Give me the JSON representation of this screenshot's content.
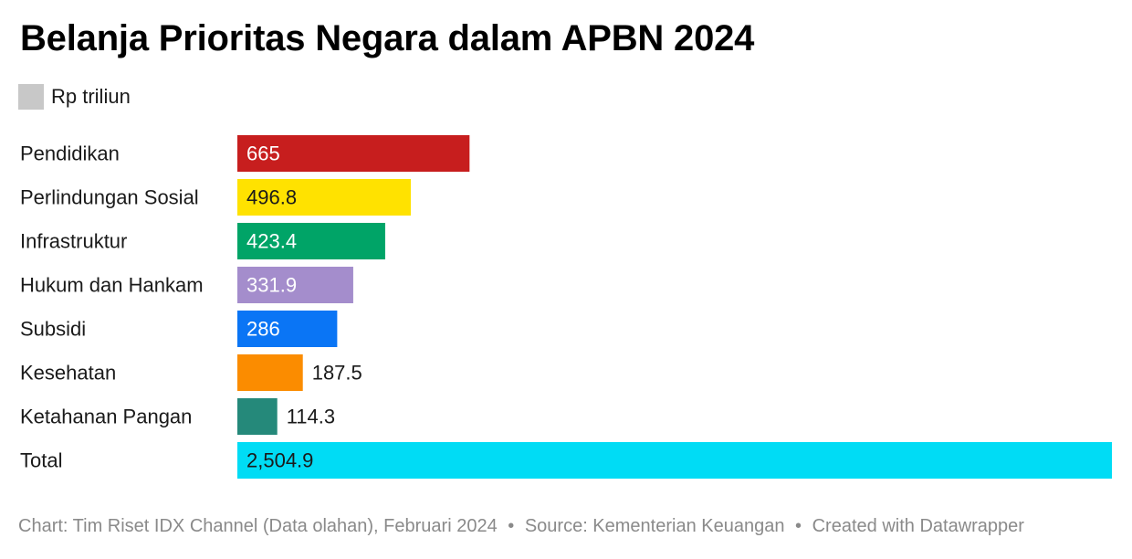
{
  "title": "Belanja Prioritas Negara dalam APBN 2024",
  "legend": {
    "label": "Rp triliun",
    "swatch_color": "#c8c8c8"
  },
  "footer": {
    "chart_credit": "Chart: Tim Riset IDX Channel (Data olahan), Februari 2024",
    "source": "Source: Kementerian Keuangan",
    "created_with": "Created with Datawrapper",
    "separator": "•"
  },
  "chart_data": {
    "type": "bar",
    "orientation": "horizontal",
    "title": "Belanja Prioritas Negara dalam APBN 2024",
    "unit": "Rp triliun",
    "xlim": [
      0,
      2504.9
    ],
    "grid": false,
    "bars": [
      {
        "category": "Pendidikan",
        "value": 665,
        "label": "665",
        "color": "#c71e1e",
        "label_color": "#ffffff",
        "label_position": "inside"
      },
      {
        "category": "Perlindungan Sosial",
        "value": 496.8,
        "label": "496.8",
        "color": "#ffe200",
        "label_color": "#1a1a1a",
        "label_position": "inside"
      },
      {
        "category": "Infrastruktur",
        "value": 423.4,
        "label": "423.4",
        "color": "#00a467",
        "label_color": "#ffffff",
        "label_position": "inside"
      },
      {
        "category": "Hukum dan Hankam",
        "value": 331.9,
        "label": "331.9",
        "color": "#a48dcc",
        "label_color": "#ffffff",
        "label_position": "inside"
      },
      {
        "category": "Subsidi",
        "value": 286,
        "label": "286",
        "color": "#0a75f5",
        "label_color": "#ffffff",
        "label_position": "inside"
      },
      {
        "category": "Kesehatan",
        "value": 187.5,
        "label": "187.5",
        "color": "#fb8c00",
        "label_color": "#1a1a1a",
        "label_position": "outside"
      },
      {
        "category": "Ketahanan Pangan",
        "value": 114.3,
        "label": "114.3",
        "color": "#25897a",
        "label_color": "#1a1a1a",
        "label_position": "outside"
      },
      {
        "category": "Total",
        "value": 2504.9,
        "label": "2,504.9",
        "color": "#00dcf5",
        "label_color": "#1a1a1a",
        "label_position": "inside"
      }
    ]
  }
}
